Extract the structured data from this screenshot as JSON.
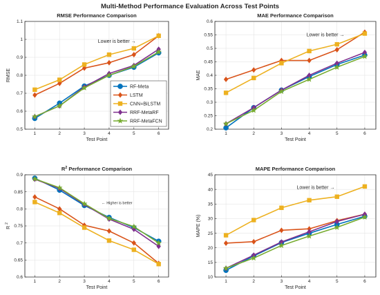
{
  "figure": {
    "title": "Multi-Method Performance Evaluation Across Test Points"
  },
  "colors": {
    "RF-Meta": "#0072BD",
    "LSTM": "#D95319",
    "CNN+BiLSTM": "#EDB120",
    "RRF-MetaRF": "#7E2F8E",
    "RRF-MetaFCN": "#77AC30",
    "grid": "#dfdfdf",
    "axis": "#262626"
  },
  "chart_data": [
    {
      "id": "rmse",
      "type": "line",
      "title": "RMSE Performance Comparison",
      "xlabel": "Test Point",
      "ylabel": "RMSE",
      "x": [
        1,
        2,
        3,
        4,
        5,
        6
      ],
      "xlim": [
        0.6,
        6.4
      ],
      "ylim": [
        0.5,
        1.1
      ],
      "yticks": [
        0.5,
        0.6,
        0.7,
        0.8,
        0.9,
        1,
        1.1
      ],
      "ytick_labels": [
        "0.5",
        "0.6",
        "0.7",
        "0.8",
        "0.9",
        "1",
        "1.1"
      ],
      "grid": true,
      "legend": true,
      "legend_position": "bottom-right",
      "annotation": {
        "text": "Lower is better",
        "arrow": "→",
        "x": 3.55,
        "y": 0.98
      },
      "series": [
        {
          "name": "RF-Meta",
          "marker": "circle",
          "values": [
            0.56,
            0.645,
            0.74,
            0.8,
            0.845,
            0.925
          ]
        },
        {
          "name": "LSTM",
          "marker": "diamond",
          "values": [
            0.69,
            0.755,
            0.84,
            0.87,
            0.915,
            1.02
          ]
        },
        {
          "name": "CNN+BiLSTM",
          "marker": "square",
          "values": [
            0.72,
            0.775,
            0.86,
            0.915,
            0.95,
            1.02
          ]
        },
        {
          "name": "RRF-MetaRF",
          "marker": "diamond",
          "values": [
            0.57,
            0.63,
            0.735,
            0.81,
            0.855,
            0.945
          ]
        },
        {
          "name": "RRF-MetaFCN",
          "marker": "star",
          "values": [
            0.57,
            0.63,
            0.73,
            0.8,
            0.85,
            0.93
          ]
        }
      ]
    },
    {
      "id": "mae",
      "type": "line",
      "title": "MAE Performance Comparison",
      "xlabel": "Test Point",
      "ylabel": "MAE",
      "x": [
        1,
        2,
        3,
        4,
        5,
        6
      ],
      "xlim": [
        0.6,
        6.4
      ],
      "ylim": [
        0.2,
        0.6
      ],
      "yticks": [
        0.2,
        0.25,
        0.3,
        0.35,
        0.4,
        0.45,
        0.5,
        0.55,
        0.6
      ],
      "ytick_labels": [
        "0.2",
        "0.25",
        "0.3",
        "0.35",
        "0.4",
        "0.45",
        "0.5",
        "0.55",
        "0.6"
      ],
      "grid": true,
      "legend": false,
      "annotation": {
        "text": "Lower is better",
        "arrow": "→",
        "x": 3.9,
        "y": 0.545
      },
      "series": [
        {
          "name": "RF-Meta",
          "marker": "circle",
          "values": [
            0.205,
            0.28,
            0.345,
            0.395,
            0.44,
            0.475
          ]
        },
        {
          "name": "LSTM",
          "marker": "diamond",
          "values": [
            0.385,
            0.42,
            0.455,
            0.455,
            0.495,
            0.56
          ]
        },
        {
          "name": "CNN+BiLSTM",
          "marker": "square",
          "values": [
            0.335,
            0.39,
            0.445,
            0.49,
            0.515,
            0.555
          ]
        },
        {
          "name": "RRF-MetaRF",
          "marker": "diamond",
          "values": [
            0.22,
            0.28,
            0.345,
            0.4,
            0.445,
            0.485
          ]
        },
        {
          "name": "RRF-MetaFCN",
          "marker": "star",
          "values": [
            0.22,
            0.27,
            0.34,
            0.385,
            0.43,
            0.47
          ]
        }
      ]
    },
    {
      "id": "r2",
      "type": "line",
      "title": "Performance Comparison",
      "title_prefix": "R",
      "title_prefix_sub": "2",
      "xlabel": "Test Point",
      "ylabel": "R",
      "ylabel_sup": "2",
      "x": [
        1,
        2,
        3,
        4,
        5,
        6
      ],
      "xlim": [
        0.6,
        6.4
      ],
      "ylim": [
        0.6,
        0.9
      ],
      "yticks": [
        0.6,
        0.65,
        0.7,
        0.75,
        0.8,
        0.85,
        0.9
      ],
      "ytick_labels": [
        "0.6",
        "0.65",
        "0.7",
        "0.75",
        "0.8",
        "0.85",
        "0.9"
      ],
      "grid": true,
      "legend": false,
      "annotation": {
        "text": "Higher is better",
        "arrow": "←",
        "x": 3.7,
        "y": 0.814
      },
      "series": [
        {
          "name": "RF-Meta",
          "marker": "circle",
          "values": [
            0.89,
            0.855,
            0.81,
            0.775,
            0.745,
            0.705
          ]
        },
        {
          "name": "LSTM",
          "marker": "diamond",
          "values": [
            0.835,
            0.8,
            0.752,
            0.735,
            0.7,
            0.64
          ]
        },
        {
          "name": "CNN+BiLSTM",
          "marker": "square",
          "values": [
            0.82,
            0.788,
            0.745,
            0.707,
            0.68,
            0.638
          ]
        },
        {
          "name": "RRF-MetaRF",
          "marker": "diamond",
          "values": [
            0.887,
            0.86,
            0.813,
            0.77,
            0.74,
            0.69
          ]
        },
        {
          "name": "RRF-MetaFCN",
          "marker": "star",
          "values": [
            0.888,
            0.862,
            0.815,
            0.772,
            0.748,
            0.7
          ]
        }
      ]
    },
    {
      "id": "mape",
      "type": "line",
      "title": "MAPE Performance Comparison",
      "xlabel": "Test Point",
      "ylabel": "MAPE (%)",
      "x": [
        1,
        2,
        3,
        4,
        5,
        6
      ],
      "xlim": [
        0.6,
        6.4
      ],
      "ylim": [
        10,
        45
      ],
      "yticks": [
        10,
        15,
        20,
        25,
        30,
        35,
        40,
        45
      ],
      "ytick_labels": [
        "10",
        "15",
        "20",
        "25",
        "30",
        "35",
        "40",
        "45"
      ],
      "grid": true,
      "legend": false,
      "annotation": {
        "text": "Lower is better",
        "arrow": "→",
        "x": 3.55,
        "y": 40.2
      },
      "series": [
        {
          "name": "RF-Meta",
          "marker": "circle",
          "values": [
            12.3,
            17.2,
            21.8,
            25.0,
            28.0,
            30.8
          ]
        },
        {
          "name": "LSTM",
          "marker": "diamond",
          "values": [
            21.6,
            22.1,
            26.0,
            26.5,
            29.3,
            31.5
          ]
        },
        {
          "name": "CNN+BiLSTM",
          "marker": "square",
          "values": [
            24.3,
            29.5,
            33.7,
            36.3,
            37.5,
            41.0
          ]
        },
        {
          "name": "RRF-MetaRF",
          "marker": "diamond",
          "values": [
            13.0,
            17.5,
            22.0,
            25.5,
            29.0,
            31.5
          ]
        },
        {
          "name": "RRF-MetaFCN",
          "marker": "star",
          "values": [
            13.0,
            16.5,
            20.8,
            24.0,
            27.0,
            30.5
          ]
        }
      ]
    }
  ]
}
